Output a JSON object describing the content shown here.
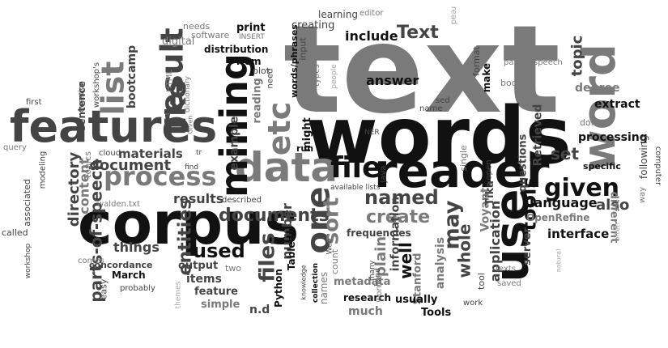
{
  "colors": {
    "black": "#111111",
    "dark": "#444444",
    "gray": "#7a7a7a",
    "light": "#a6a6a6",
    "background": "#ffffff"
  },
  "words": {
    "text": "text",
    "words": "words",
    "corpus": "corpus",
    "features": "features",
    "reader": "reader",
    "data": "data",
    "word": "word",
    "use": "use",
    "mining": "mining",
    "result": "result",
    "list": "list",
    "like": "like",
    "file": "file",
    "etc": "etc",
    "one": "one",
    "process": "process",
    "given": "given",
    "named": "named",
    "create": "create",
    "files": "files",
    "documents": "documents",
    "sort": "sort",
    "may": "may",
    "tools": "tools",
    "document": "document",
    "used": "used",
    "Text": "Text",
    "include": "include",
    "answer": "answer",
    "topic": "topic",
    "set": "set",
    "language": "language",
    "also": "also",
    "whole": "whole",
    "application": "application",
    "interface": "interface",
    "parts_of_speech": "parts-of-speech",
    "directory": "directory",
    "content": "content",
    "entities": "entities",
    "number": "number",
    "plain": "plain",
    "information": "information",
    "analysis": "analysis",
    "well": "well",
    "frequencies": "frequencies",
    "Voyant": "Voyant",
    "results": "results",
    "things": "things",
    "materials": "materials",
    "example": "example",
    "reading": "reading",
    "bootcamp": "bootcamp",
    "sentence": "sentence",
    "Retrieved": "Retrieved",
    "questions": "questions",
    "processing": "processing",
    "extract": "extract",
    "degree": "degree",
    "different": "different",
    "OpenRefine": "OpenRefine",
    "Tika": "Tika",
    "Stanford": "Stanford",
    "research": "research",
    "usually": "usually",
    "Tools": "Tools",
    "much": "much",
    "metadata": "metadata",
    "items": "items",
    "output": "output",
    "feature": "feature",
    "simple": "simple",
    "n_d": "n.d",
    "Python": "Python",
    "Tableau": "Tableau",
    "concordance": "concordance",
    "March": "March",
    "easy": "easy",
    "probably": "probably",
    "two": "two",
    "comes": "comes",
    "called": "called",
    "workshop": "workshop",
    "associated": "associated",
    "modeling": "modeling",
    "query": "query",
    "first": "first",
    "question": "question",
    "workshops": "workshop's",
    "needs": "needs",
    "digital": "digital",
    "HTML": "HTML",
    "dictionary": "dictionary",
    "Given": "Given",
    "software": "software",
    "INSERT": "INSERT",
    "distribution": "distribution",
    "print": "print",
    "item": "item",
    "plot": "plot",
    "need": "need",
    "words_phrases": "words/phrases",
    "input": "input",
    "types": "types",
    "creating": "creating",
    "learning": "learning",
    "editor": "editor",
    "read": "read",
    "people": "people",
    "format": "format",
    "make": "make",
    "part_of_speech": "part-of-speech",
    "books": "books",
    "name": "name",
    "sed": "sed",
    "NER": "NER",
    "single": "single",
    "might": "might",
    "run": "run",
    "Java": "Java",
    "open": "open",
    "done": "done",
    "following": "following",
    "specific": "specific",
    "computer": "computer",
    "way": "way",
    "often": "often",
    "natural": "natural",
    "saved": "saved",
    "texts": "texts",
    "work": "work",
    "tool": "tool",
    "server": "server",
    "hand": "hand",
    "many": "many",
    "wordle": "wordle",
    "knowledge": "knowledge",
    "collection": "collection",
    "names": "names",
    "count": "count",
    "Web": "Web",
    "available_lists": "available lists",
    "described": "described",
    "walden_txt": "walden.txt",
    "cloud": "cloud",
    "find": "find",
    "themes": "themes",
    "topics": "topics",
    "tr": "tr"
  }
}
